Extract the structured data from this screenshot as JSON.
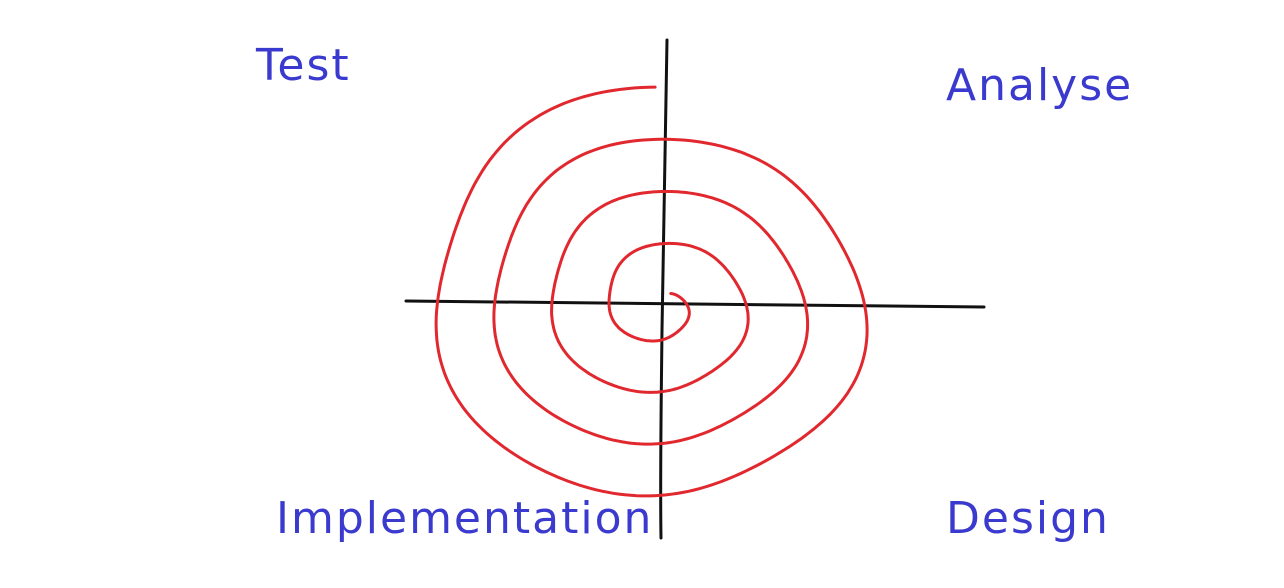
{
  "diagram": {
    "type": "spiral-model",
    "colors": {
      "axes": "#111111",
      "spiral": "#e0282e",
      "labels": "#3a3acf"
    },
    "labels": {
      "top_left": "Test",
      "top_right": "Analyse",
      "bottom_left": "Implementation",
      "bottom_right": "Design"
    }
  }
}
